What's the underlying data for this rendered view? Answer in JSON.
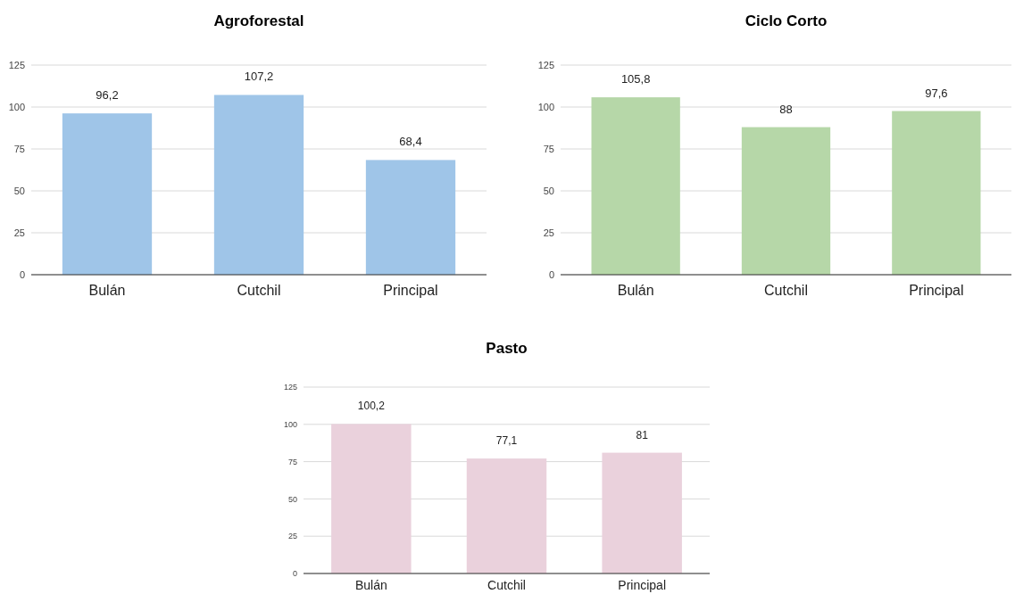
{
  "chart_data": [
    {
      "type": "bar",
      "title": "Agroforestal",
      "categories": [
        "Bulán",
        "Cutchil",
        "Principal"
      ],
      "values": [
        96.2,
        107.2,
        68.4
      ],
      "value_labels": [
        "96,2",
        "107,2",
        "68,4"
      ],
      "color": "#9fc5e8",
      "ylim": [
        0,
        125
      ],
      "yticks": [
        0,
        25,
        50,
        75,
        100,
        125
      ],
      "grid": "y"
    },
    {
      "type": "bar",
      "title": "Ciclo Corto",
      "categories": [
        "Bulán",
        "Cutchil",
        "Principal"
      ],
      "values": [
        105.8,
        88,
        97.6
      ],
      "value_labels": [
        "105,8",
        "88",
        "97,6"
      ],
      "color": "#b6d7a8",
      "ylim": [
        0,
        125
      ],
      "yticks": [
        0,
        25,
        50,
        75,
        100,
        125
      ],
      "grid": "y"
    },
    {
      "type": "bar",
      "title": "Pasto",
      "categories": [
        "Bulán",
        "Cutchil",
        "Principal"
      ],
      "values": [
        100.2,
        77.1,
        81
      ],
      "value_labels": [
        "100,2",
        "77,1",
        "81"
      ],
      "color": "#ead1dc",
      "ylim": [
        0,
        125
      ],
      "yticks": [
        0,
        25,
        50,
        75,
        100,
        125
      ],
      "grid": "y"
    }
  ]
}
